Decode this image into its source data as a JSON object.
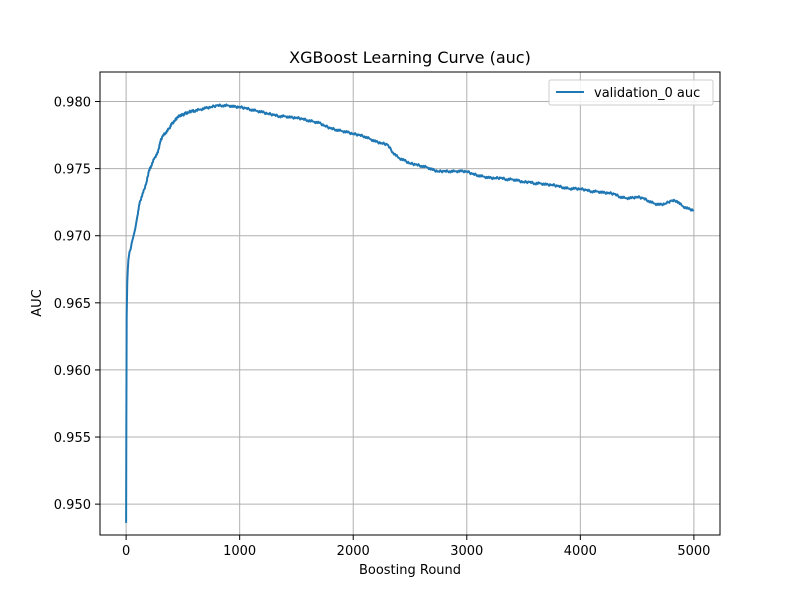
{
  "chart_data": {
    "type": "line",
    "title": "XGBoost Learning Curve (auc)",
    "xlabel": "Boosting Round",
    "ylabel": "AUC",
    "xlim": [
      -230,
      5230
    ],
    "ylim": [
      0.9477,
      0.9822
    ],
    "xticks": [
      0,
      1000,
      2000,
      3000,
      4000,
      5000
    ],
    "xtick_labels": [
      "0",
      "1000",
      "2000",
      "3000",
      "4000",
      "5000"
    ],
    "yticks": [
      0.95,
      0.955,
      0.96,
      0.965,
      0.97,
      0.975,
      0.98
    ],
    "ytick_labels": [
      "0.950",
      "0.955",
      "0.960",
      "0.965",
      "0.970",
      "0.975",
      "0.980"
    ],
    "grid": true,
    "legend_position": "upper-right",
    "series_color": "#1f77b4",
    "series": [
      {
        "name": "validation_0 auc",
        "x": [
          0,
          2,
          5,
          10,
          15,
          20,
          30,
          40,
          50,
          60,
          80,
          100,
          120,
          150,
          180,
          200,
          220,
          250,
          280,
          300,
          320,
          350,
          380,
          400,
          430,
          450,
          480,
          500,
          520,
          550,
          580,
          600,
          650,
          700,
          750,
          800,
          850,
          900,
          950,
          1000,
          1050,
          1100,
          1150,
          1200,
          1250,
          1300,
          1350,
          1400,
          1450,
          1500,
          1550,
          1600,
          1650,
          1700,
          1750,
          1800,
          1850,
          1900,
          1950,
          2000,
          2050,
          2100,
          2150,
          2200,
          2250,
          2300,
          2350,
          2400,
          2450,
          2500,
          2550,
          2600,
          2650,
          2700,
          2750,
          2800,
          2850,
          2900,
          2950,
          3000,
          3050,
          3100,
          3150,
          3200,
          3250,
          3300,
          3350,
          3400,
          3450,
          3500,
          3550,
          3600,
          3650,
          3700,
          3750,
          3800,
          3850,
          3900,
          3950,
          4000,
          4050,
          4100,
          4150,
          4200,
          4250,
          4300,
          4350,
          4400,
          4450,
          4500,
          4550,
          4600,
          4650,
          4700,
          4750,
          4800,
          4850,
          4900,
          4950,
          5000
        ],
        "y": [
          0.9486,
          0.956,
          0.964,
          0.9665,
          0.9675,
          0.9682,
          0.9688,
          0.969,
          0.9695,
          0.9698,
          0.9705,
          0.9715,
          0.9725,
          0.9732,
          0.974,
          0.9748,
          0.9752,
          0.9758,
          0.9762,
          0.977,
          0.9774,
          0.9777,
          0.978,
          0.9783,
          0.9786,
          0.9788,
          0.979,
          0.979,
          0.9791,
          0.9792,
          0.9793,
          0.9793,
          0.9794,
          0.9795,
          0.9796,
          0.9797,
          0.9797,
          0.9797,
          0.9796,
          0.9796,
          0.9795,
          0.9794,
          0.9793,
          0.9792,
          0.9791,
          0.979,
          0.9789,
          0.9789,
          0.9788,
          0.9788,
          0.9787,
          0.9786,
          0.9785,
          0.9784,
          0.9782,
          0.978,
          0.9779,
          0.9778,
          0.9777,
          0.9776,
          0.9775,
          0.9774,
          0.9772,
          0.977,
          0.9769,
          0.9768,
          0.9762,
          0.9758,
          0.9756,
          0.9754,
          0.9753,
          0.9752,
          0.9751,
          0.9749,
          0.9748,
          0.9748,
          0.9748,
          0.9748,
          0.9748,
          0.9748,
          0.9746,
          0.9745,
          0.9744,
          0.9743,
          0.9743,
          0.9743,
          0.9742,
          0.9742,
          0.9741,
          0.974,
          0.974,
          0.9739,
          0.9739,
          0.9738,
          0.9738,
          0.9737,
          0.9736,
          0.9735,
          0.9735,
          0.9735,
          0.9734,
          0.9733,
          0.9733,
          0.9732,
          0.9732,
          0.9731,
          0.9729,
          0.9728,
          0.9728,
          0.9729,
          0.9728,
          0.9726,
          0.9724,
          0.9723,
          0.9724,
          0.9726,
          0.9726,
          0.9722,
          0.972,
          0.9719
        ]
      }
    ]
  }
}
